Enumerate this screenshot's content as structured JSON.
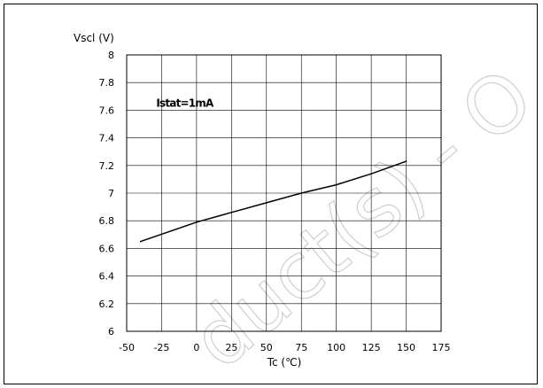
{
  "chart_data": {
    "type": "line",
    "title": "",
    "xlabel": "Tc (℃)",
    "ylabel": "Vscl (V)",
    "xlim": [
      -50,
      175
    ],
    "ylim": [
      6,
      8
    ],
    "xticks": [
      "-50",
      "-25",
      "0",
      "25",
      "50",
      "75",
      "100",
      "125",
      "150",
      "175"
    ],
    "yticks": [
      "6",
      "6.2",
      "6.4",
      "6.6",
      "6.8",
      "7",
      "7.2",
      "7.4",
      "7.6",
      "7.8",
      "8"
    ],
    "xtick_values": [
      -50,
      -25,
      0,
      25,
      50,
      75,
      100,
      125,
      150,
      175
    ],
    "ytick_values": [
      6,
      6.2,
      6.4,
      6.6,
      6.8,
      7,
      7.2,
      7.4,
      7.6,
      7.8,
      8
    ],
    "grid": true,
    "series": [
      {
        "x": [
          -40,
          0,
          25,
          50,
          75,
          100,
          125,
          150
        ],
        "y": [
          6.65,
          6.79,
          6.86,
          6.93,
          7.0,
          7.06,
          7.14,
          7.23
        ]
      }
    ],
    "annotations": [
      {
        "text": "Istat=1mA",
        "x": -20,
        "y": 7.65
      }
    ],
    "colors": {
      "line": "#000000",
      "grid": "#000000",
      "background": "#ffffff"
    }
  },
  "watermark": {
    "text": "duct(s) - O",
    "color": "#cfcfcf"
  }
}
